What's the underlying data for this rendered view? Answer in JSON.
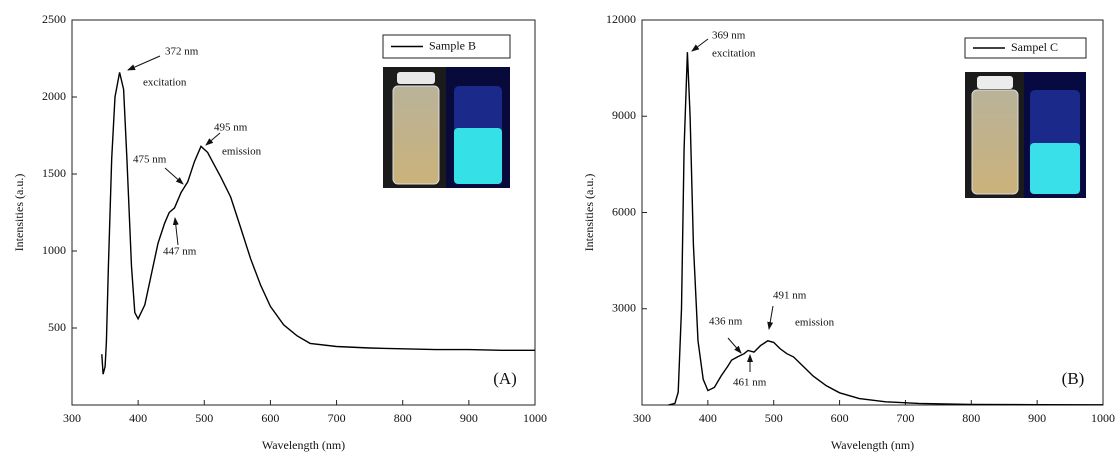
{
  "chart_data": [
    {
      "type": "line",
      "xlabel": "Wavelength (nm)",
      "ylabel": "Intensities (a.u.)",
      "panel_label": "(A)",
      "xlim": [
        300,
        1000
      ],
      "xticks": [
        300,
        400,
        500,
        600,
        700,
        800,
        900,
        1000
      ],
      "ylim": [
        0,
        2500
      ],
      "yticks": [
        500,
        1000,
        1500,
        2000,
        2500
      ],
      "x": [
        345,
        347,
        350,
        352,
        355,
        360,
        365,
        372,
        378,
        383,
        390,
        395,
        400,
        410,
        420,
        430,
        440,
        447,
        455,
        465,
        475,
        485,
        495,
        505,
        515,
        525,
        540,
        555,
        570,
        585,
        600,
        620,
        640,
        660,
        700,
        750,
        800,
        850,
        900,
        950,
        1000
      ],
      "series": [
        {
          "name": "Sample B",
          "color": "#000000",
          "values": [
            330,
            200,
            250,
            410,
            900,
            1600,
            2000,
            2160,
            2050,
            1600,
            900,
            600,
            560,
            650,
            850,
            1050,
            1180,
            1250,
            1280,
            1380,
            1450,
            1580,
            1680,
            1640,
            1560,
            1480,
            1350,
            1150,
            950,
            780,
            640,
            520,
            450,
            400,
            380,
            370,
            365,
            360,
            360,
            355,
            355
          ]
        }
      ],
      "annotations": [
        "372 nm",
        "excitation",
        "495 nm",
        "emission",
        "475 nm",
        "447 nm"
      ]
    },
    {
      "type": "line",
      "xlabel": "Wavelength (nm)",
      "ylabel": "Intensities (a.u.)",
      "panel_label": "(B)",
      "xlim": [
        300,
        1000
      ],
      "xticks": [
        300,
        400,
        500,
        600,
        700,
        800,
        900,
        1000
      ],
      "ylim": [
        0,
        12000
      ],
      "yticks": [
        3000,
        6000,
        9000,
        12000
      ],
      "x": [
        340,
        350,
        355,
        360,
        364,
        369,
        373,
        378,
        385,
        393,
        400,
        410,
        420,
        430,
        436,
        445,
        455,
        461,
        470,
        480,
        491,
        500,
        510,
        520,
        530,
        545,
        560,
        580,
        600,
        630,
        670,
        720,
        800,
        900,
        1000
      ],
      "series": [
        {
          "name": "Sampel C",
          "color": "#000000",
          "values": [
            0,
            50,
            400,
            3000,
            8000,
            11000,
            9000,
            5000,
            2000,
            800,
            450,
            550,
            900,
            1200,
            1400,
            1500,
            1600,
            1700,
            1650,
            1850,
            2000,
            1950,
            1750,
            1600,
            1500,
            1200,
            900,
            600,
            380,
            200,
            100,
            50,
            20,
            10,
            5
          ]
        }
      ],
      "annotations": [
        "369 nm",
        "excitation",
        "491 nm",
        "emission",
        "436 nm",
        "461 nm"
      ]
    }
  ]
}
